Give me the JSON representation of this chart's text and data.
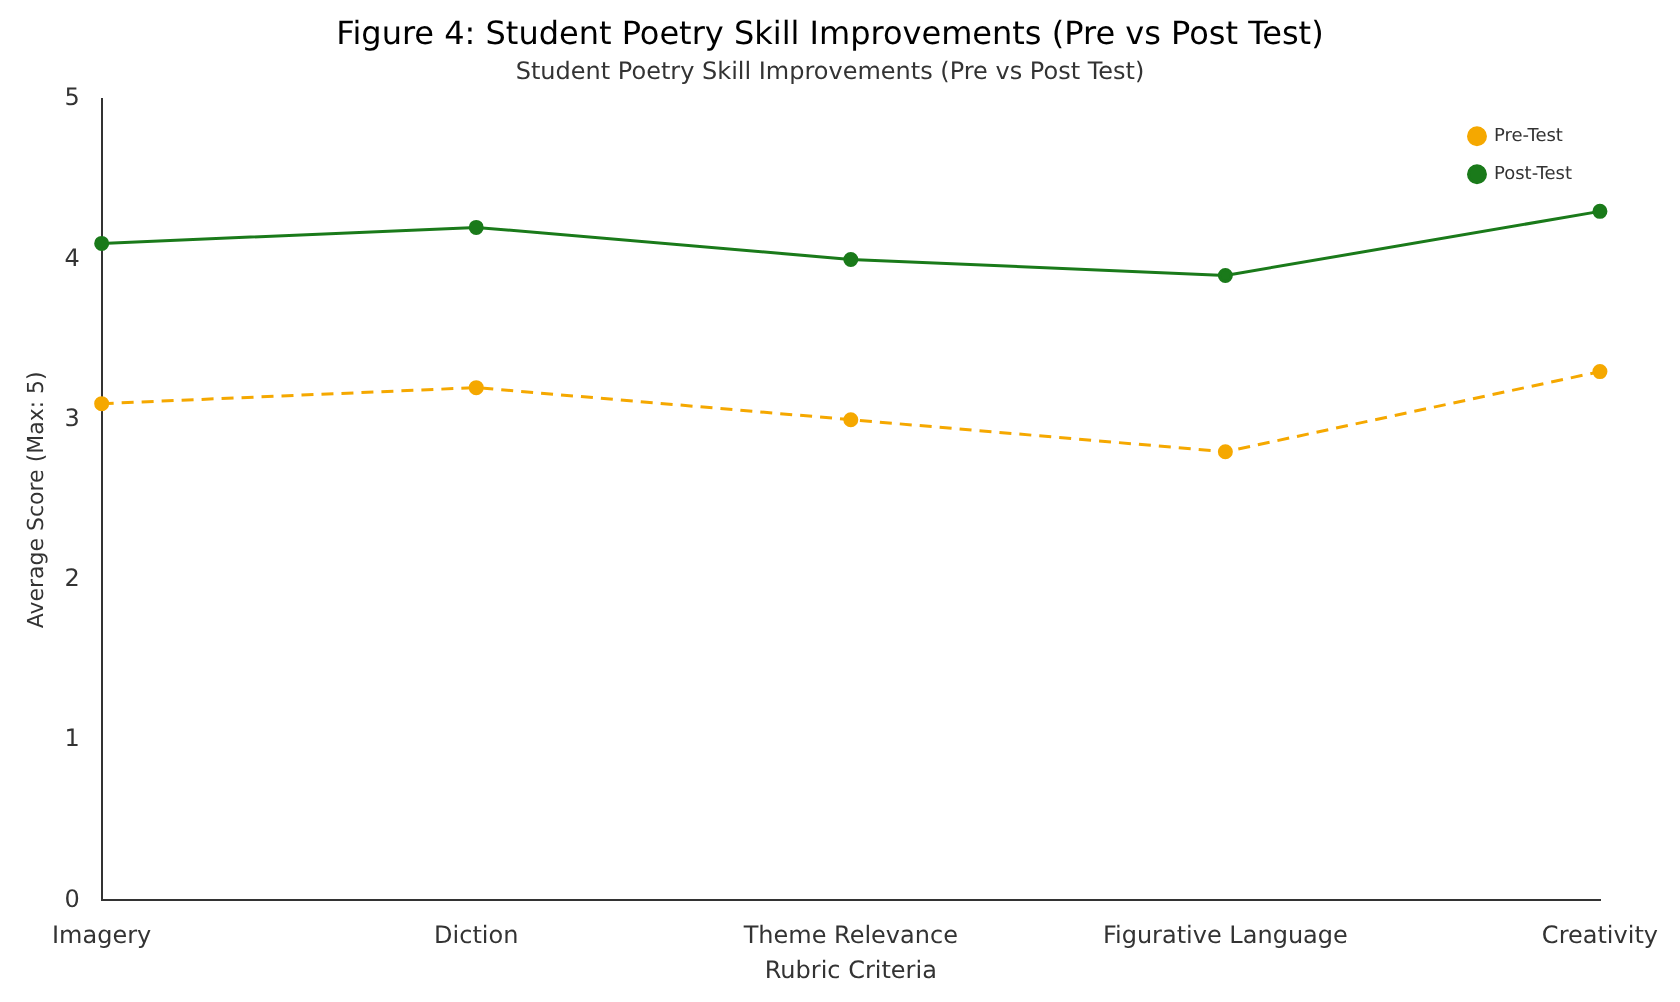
{
  "chart_data": {
    "type": "line",
    "title": "Figure 4: Student Poetry Skill Improvements (Pre vs Post Test)",
    "subtitle": "Student Poetry Skill Improvements (Pre vs Post Test)",
    "xlabel": "Rubric Criteria",
    "ylabel": "Average Score (Max: 5)",
    "categories": [
      "Imagery",
      "Diction",
      "Theme Relevance",
      "Figurative Language",
      "Creativity"
    ],
    "series": [
      {
        "name": "Pre-Test",
        "color": "#f5a800",
        "values": [
          3.1,
          3.2,
          3.0,
          2.8,
          3.3
        ],
        "line_style": "dashed"
      },
      {
        "name": "Post-Test",
        "color": "#1a7a1a",
        "values": [
          4.1,
          4.2,
          4.0,
          3.9,
          4.3
        ],
        "line_style": "solid"
      }
    ],
    "ylim": [
      0,
      5
    ],
    "yticks": [
      0,
      1,
      2,
      3,
      4,
      5
    ],
    "grid": false,
    "legend": "top right",
    "marker": "circle"
  }
}
